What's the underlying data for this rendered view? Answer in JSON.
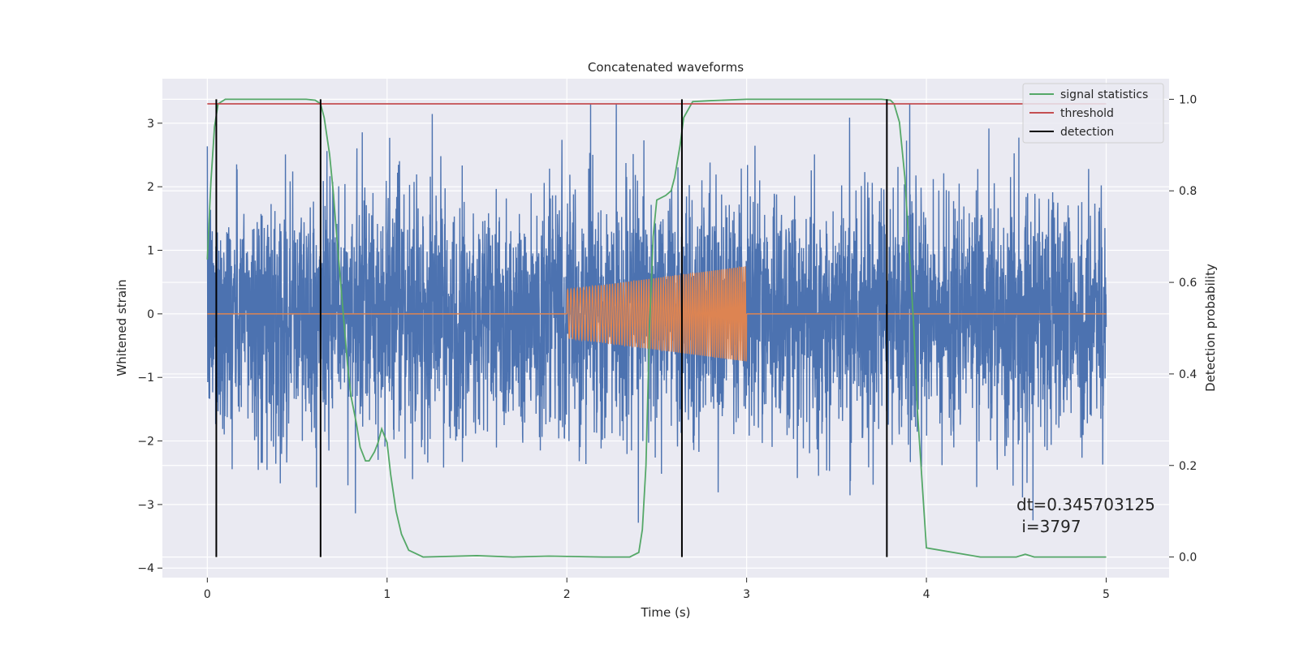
{
  "chart_data": {
    "type": "line",
    "title": "Concatenated waveforms",
    "xlabel": "Time (s)",
    "ylabel": "Whitened strain",
    "y2label": "Detection probability",
    "xlim": [
      -0.25,
      5.35
    ],
    "ylim": [
      -4.15,
      3.7
    ],
    "y2lim": [
      -0.045,
      1.045
    ],
    "x_ticks": [
      0,
      1,
      2,
      3,
      4,
      5
    ],
    "y_ticks": [
      -4,
      -3,
      -2,
      -1,
      0,
      1,
      2,
      3
    ],
    "y2_ticks": [
      0.0,
      0.2,
      0.4,
      0.6,
      0.8,
      1.0
    ],
    "grid": true,
    "legend_position": "top-right",
    "series": [
      {
        "name": "",
        "kind": "noise",
        "axis": "left",
        "color": "#4c72b0",
        "x_range": [
          0,
          5
        ],
        "approx_envelope": [
          -3.8,
          3.3
        ]
      },
      {
        "name": "",
        "kind": "chirp",
        "axis": "left",
        "color": "#dd8452",
        "x_range": [
          2,
          3
        ],
        "start_amplitude": 0.38,
        "end_amplitude": 0.75,
        "flat_value": 0
      },
      {
        "name": "signal statistics",
        "axis": "right",
        "color": "#55a868",
        "x": [
          0,
          0.02,
          0.04,
          0.06,
          0.1,
          0.2,
          0.4,
          0.55,
          0.6,
          0.63,
          0.65,
          0.68,
          0.7,
          0.72,
          0.75,
          0.78,
          0.8,
          0.83,
          0.85,
          0.88,
          0.9,
          0.93,
          0.95,
          0.97,
          1.0,
          1.02,
          1.05,
          1.08,
          1.12,
          1.2,
          1.5,
          1.7,
          1.9,
          2.2,
          2.35,
          2.4,
          2.42,
          2.44,
          2.46,
          2.48,
          2.5,
          2.55,
          2.58,
          2.6,
          2.63,
          2.65,
          2.7,
          2.8,
          3.0,
          3.3,
          3.6,
          3.75,
          3.8,
          3.82,
          3.85,
          3.88,
          3.9,
          3.93,
          3.95,
          4.0,
          4.3,
          4.5,
          4.55,
          4.6,
          4.9,
          5.0
        ],
        "y": [
          0.65,
          0.82,
          0.94,
          0.99,
          1.0,
          1.0,
          1.0,
          1.0,
          0.998,
          0.99,
          0.96,
          0.88,
          0.8,
          0.7,
          0.56,
          0.42,
          0.35,
          0.29,
          0.24,
          0.21,
          0.21,
          0.23,
          0.25,
          0.28,
          0.25,
          0.18,
          0.1,
          0.05,
          0.015,
          0.0,
          0.003,
          0.0,
          0.002,
          0.0,
          0.0,
          0.01,
          0.06,
          0.2,
          0.5,
          0.7,
          0.78,
          0.79,
          0.8,
          0.83,
          0.9,
          0.96,
          0.995,
          0.997,
          1.0,
          1.0,
          1.0,
          1.0,
          0.998,
          0.99,
          0.95,
          0.83,
          0.7,
          0.5,
          0.32,
          0.02,
          0.0,
          0.0,
          0.006,
          0.0,
          0.0,
          0.0
        ]
      },
      {
        "name": "threshold",
        "axis": "right",
        "color": "#c44e52",
        "x": [
          0,
          5
        ],
        "y": [
          0.99,
          0.99
        ]
      },
      {
        "name": "detection",
        "axis": "right",
        "color": "#000000",
        "vlines": [
          0.05,
          0.63,
          2.64,
          3.78
        ],
        "y_from": 0.0,
        "y_to": 1.0
      }
    ],
    "annotation": {
      "line1": "dt=0.345703125",
      "line2": " i=3797"
    }
  }
}
